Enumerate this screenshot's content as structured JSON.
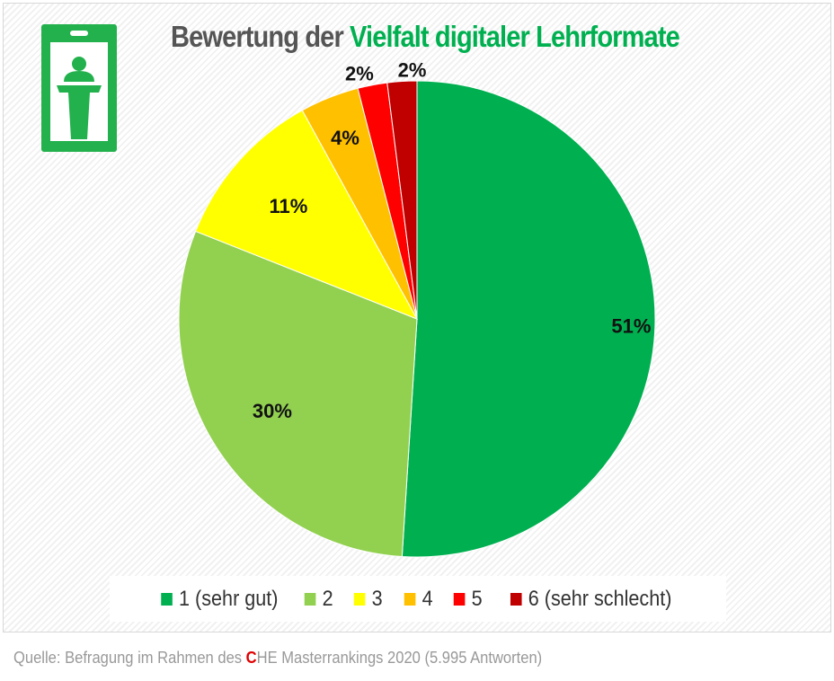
{
  "title": {
    "prefix": "Bewertung der ",
    "highlight": "Vielfalt digitaler Lehrformate"
  },
  "chart_data": {
    "type": "pie",
    "title": "Bewertung der Vielfalt digitaler Lehrformate",
    "categories": [
      "1 (sehr gut)",
      "2",
      "3",
      "4",
      "5",
      "6 (sehr schlecht)"
    ],
    "values": [
      51,
      30,
      11,
      4,
      2,
      2
    ],
    "labels": [
      "51%",
      "30%",
      "11%",
      "4%",
      "2%",
      "2%"
    ],
    "colors": [
      "#00b050",
      "#92d050",
      "#ffff00",
      "#ffc000",
      "#ff0000",
      "#c00000"
    ],
    "start": "top",
    "direction": "clockwise",
    "legend_position": "bottom"
  },
  "source": {
    "prefix": "Quelle: Befragung im Rahmen des ",
    "c": "C",
    "suffix": "HE Masterrankings 2020 (5.995 Antworten)"
  },
  "icons": {
    "logo": "lectern-speaker-icon"
  }
}
